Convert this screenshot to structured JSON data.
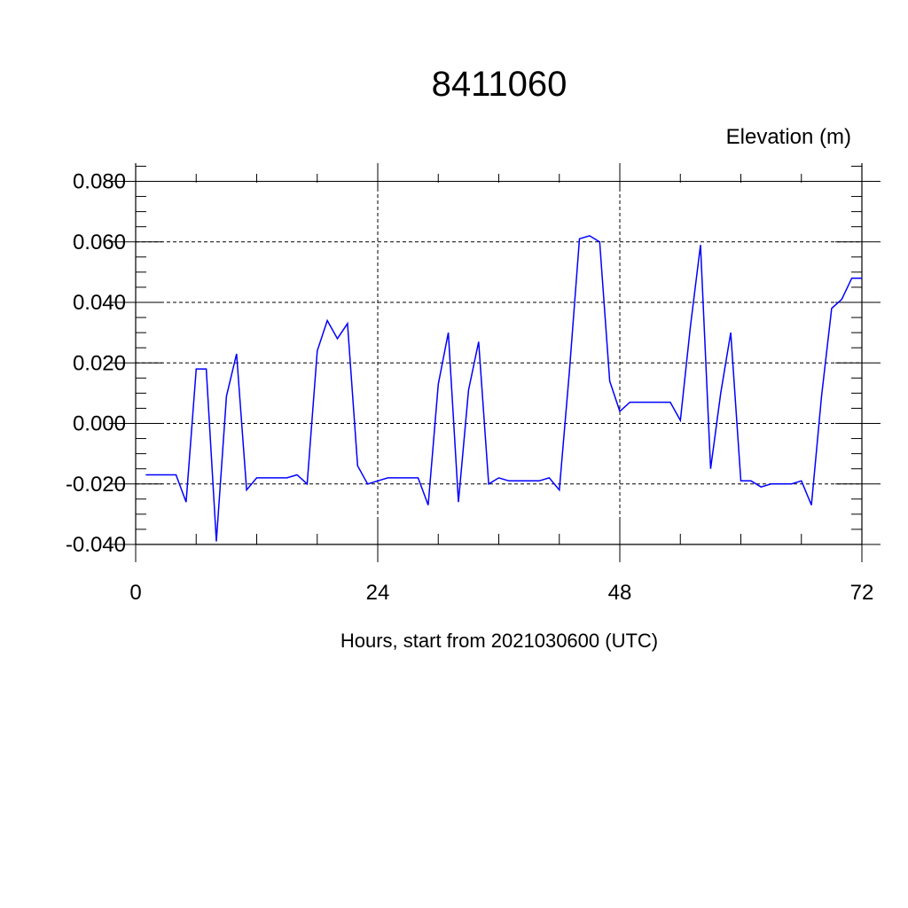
{
  "chart_data": {
    "type": "line",
    "title": "8411060",
    "ylabel": "Elevation (m)",
    "xlabel": "Hours, start from 2021030600 (UTC)",
    "xlim": [
      0,
      72
    ],
    "ylim": [
      -0.04,
      0.086
    ],
    "x_ticks": [
      0,
      24,
      48,
      72
    ],
    "x_tick_labels": [
      "0",
      "24",
      "48",
      "72"
    ],
    "y_ticks": [
      -0.04,
      -0.02,
      0.0,
      0.02,
      0.04,
      0.06,
      0.08
    ],
    "y_tick_labels": [
      "-0.040",
      "-0.020",
      "0.000",
      "0.020",
      "0.040",
      "0.060",
      "0.080"
    ],
    "grid": true,
    "series": [
      {
        "color": "#0000ff",
        "x": [
          1,
          2,
          3,
          4,
          5,
          6,
          7,
          8,
          9,
          10,
          11,
          12,
          13,
          14,
          15,
          16,
          17,
          18,
          19,
          20,
          21,
          22,
          23,
          24,
          25,
          26,
          27,
          28,
          29,
          30,
          31,
          32,
          33,
          34,
          35,
          36,
          37,
          38,
          39,
          40,
          41,
          42,
          43,
          44,
          45,
          46,
          47,
          48,
          49,
          50,
          51,
          52,
          53,
          54,
          55,
          56,
          57,
          58,
          59,
          60,
          61,
          62,
          63,
          64,
          65,
          66,
          67,
          68,
          69,
          70,
          71,
          72
        ],
        "values": [
          -0.017,
          -0.017,
          -0.017,
          -0.017,
          -0.026,
          0.018,
          0.018,
          -0.039,
          0.009,
          0.023,
          -0.022,
          -0.018,
          -0.018,
          -0.018,
          -0.018,
          -0.017,
          -0.02,
          0.024,
          0.034,
          0.028,
          0.033,
          -0.014,
          -0.02,
          -0.019,
          -0.018,
          -0.018,
          -0.018,
          -0.018,
          -0.027,
          0.013,
          0.03,
          -0.026,
          0.011,
          0.027,
          -0.02,
          -0.018,
          -0.019,
          -0.019,
          -0.019,
          -0.019,
          -0.018,
          -0.022,
          0.017,
          0.061,
          0.062,
          0.06,
          0.014,
          0.004,
          0.007,
          0.007,
          0.007,
          0.007,
          0.007,
          0.001,
          0.032,
          0.059,
          -0.015,
          0.01,
          0.03,
          -0.019,
          -0.019,
          -0.021,
          -0.02,
          -0.02,
          -0.02,
          -0.019,
          -0.027,
          0.009,
          0.038,
          0.041,
          0.048,
          0.048
        ]
      }
    ]
  }
}
